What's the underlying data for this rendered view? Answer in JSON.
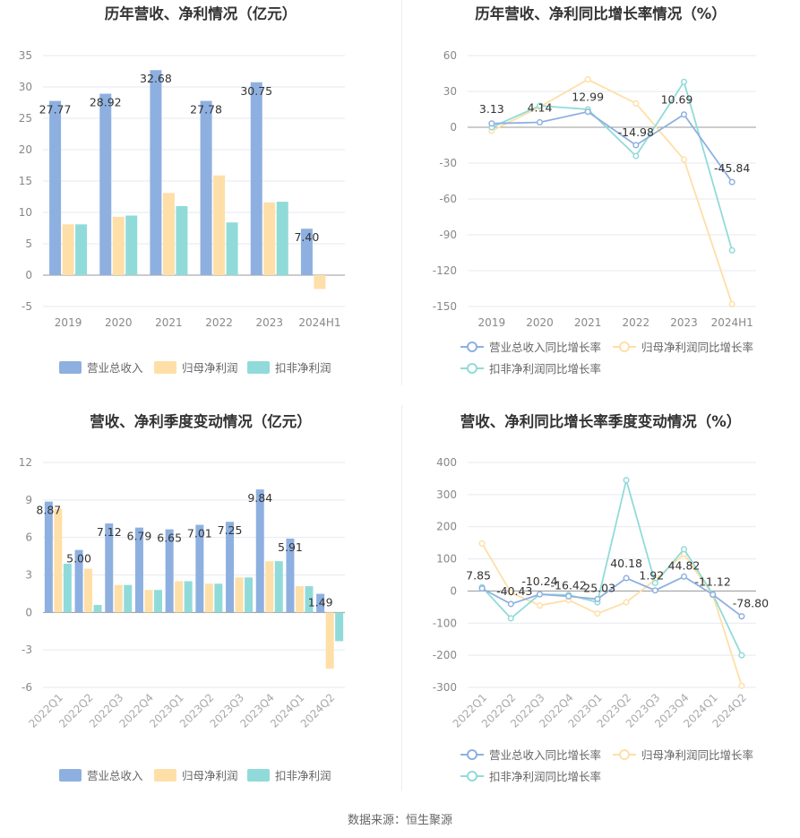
{
  "source_label": "数据来源：恒生聚源",
  "colors": {
    "revenue": "#8eb0e0",
    "parent": "#ffdfa8",
    "deducted": "#90dbd9",
    "grid": "#e6e9ef",
    "axis": "#999999",
    "text": "#888888",
    "label": "#333333"
  },
  "chart_data": [
    {
      "type": "bar",
      "title": "历年营收、净利情况（亿元）",
      "categories": [
        "2019",
        "2020",
        "2021",
        "2022",
        "2023",
        "2024H1"
      ],
      "ylim": [
        -5,
        35
      ],
      "yticks": [
        -5,
        0,
        5,
        10,
        15,
        20,
        25,
        30,
        35
      ],
      "series": [
        {
          "name": "营业总收入",
          "values": [
            27.77,
            28.92,
            32.68,
            27.78,
            30.75,
            7.4
          ],
          "labels": [
            "27.77",
            "28.92",
            "32.68",
            "27.78",
            "30.75",
            "7.40"
          ]
        },
        {
          "name": "归母净利润",
          "values": [
            8.1,
            9.3,
            13.1,
            15.9,
            11.6,
            -2.2
          ]
        },
        {
          "name": "扣非净利润",
          "values": [
            8.1,
            9.5,
            11.0,
            8.4,
            11.7,
            0.0
          ]
        }
      ]
    },
    {
      "type": "line",
      "title": "历年营收、净利同比增长率情况（%）",
      "categories": [
        "2019",
        "2020",
        "2021",
        "2022",
        "2023",
        "2024H1"
      ],
      "ylim": [
        -150,
        60
      ],
      "yticks": [
        -150,
        -120,
        -90,
        -60,
        -30,
        0,
        30,
        60
      ],
      "series": [
        {
          "name": "营业总收入同比增长率",
          "values": [
            3.13,
            4.14,
            12.99,
            -14.98,
            10.69,
            -45.84
          ],
          "labels": [
            "3.13",
            "4.14",
            "12.99",
            "-14.98",
            "10.69",
            "-45.84"
          ]
        },
        {
          "name": "归母净利润同比增长率",
          "values": [
            -3,
            17,
            40,
            20,
            -27,
            -148
          ]
        },
        {
          "name": "扣非净利润同比增长率",
          "values": [
            0,
            18,
            15,
            -24,
            38,
            -103
          ]
        }
      ]
    },
    {
      "type": "bar",
      "title": "营收、净利季度变动情况（亿元）",
      "categories": [
        "2022Q1",
        "2022Q2",
        "2022Q3",
        "2022Q4",
        "2023Q1",
        "2023Q2",
        "2023Q3",
        "2023Q4",
        "2024Q1",
        "2024Q2"
      ],
      "ylim": [
        -6,
        12
      ],
      "yticks": [
        -6,
        -3,
        0,
        3,
        6,
        9,
        12
      ],
      "series": [
        {
          "name": "营业总收入",
          "values": [
            8.87,
            5.0,
            7.12,
            6.79,
            6.65,
            7.01,
            7.25,
            9.84,
            5.91,
            1.49
          ],
          "labels": [
            "8.87",
            "5.00",
            "7.12",
            "6.79",
            "6.65",
            "7.01",
            "7.25",
            "9.84",
            "5.91",
            "1.49"
          ]
        },
        {
          "name": "归母净利润",
          "values": [
            8.3,
            3.5,
            2.2,
            1.8,
            2.5,
            2.3,
            2.8,
            4.1,
            2.1,
            -4.5
          ]
        },
        {
          "name": "扣非净利润",
          "values": [
            3.9,
            0.6,
            2.2,
            1.8,
            2.5,
            2.3,
            2.8,
            4.1,
            2.1,
            -2.3
          ]
        }
      ]
    },
    {
      "type": "line",
      "title": "营收、净利同比增长率季度变动情况（%）",
      "categories": [
        "2022Q1",
        "2022Q2",
        "2022Q3",
        "2022Q4",
        "2023Q1",
        "2023Q2",
        "2023Q3",
        "2023Q4",
        "2024Q1",
        "2024Q2"
      ],
      "ylim": [
        -300,
        400
      ],
      "yticks": [
        -300,
        -200,
        -100,
        0,
        100,
        200,
        300,
        400
      ],
      "series": [
        {
          "name": "营业总收入同比增长率",
          "values": [
            7.85,
            -40.43,
            -10.24,
            -16.42,
            -25.03,
            40.18,
            1.92,
            44.82,
            -11.12,
            -78.8
          ],
          "labels": [
            "7.85",
            "-40.43",
            "-10.24",
            "-16.42",
            "-25.03",
            "40.18",
            "1.92",
            "44.82",
            "-11.12",
            "-78.80"
          ]
        },
        {
          "name": "归母净利润同比增长率",
          "values": [
            148,
            -5,
            -45,
            -28,
            -70,
            -35,
            35,
            115,
            -13,
            -295
          ]
        },
        {
          "name": "扣非净利润同比增长率",
          "values": [
            12,
            -85,
            -10,
            -12,
            -35,
            345,
            25,
            130,
            -10,
            -200
          ]
        }
      ]
    }
  ]
}
